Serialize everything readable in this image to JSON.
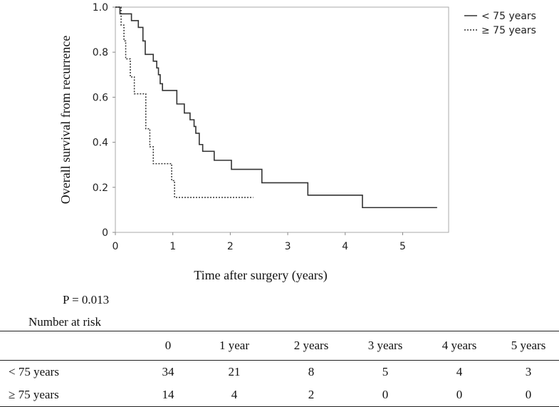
{
  "chart_data": {
    "type": "line",
    "subtype": "kaplan-meier-step",
    "xlabel": "Time after surgery (years)",
    "ylabel": "Overall survival from recurrence",
    "xlim": [
      0,
      5.8
    ],
    "ylim": [
      0,
      1.0
    ],
    "xticks": [
      0,
      1,
      2,
      3,
      4,
      5
    ],
    "xtick_labels": [
      "0",
      "1",
      "2",
      "3",
      "4",
      "5"
    ],
    "yticks": [
      0,
      0.2,
      0.4,
      0.6,
      0.8,
      1.0
    ],
    "ytick_labels": [
      "0",
      "0.2",
      "0.4",
      "0.6",
      "0.8",
      "1.0"
    ],
    "legend_position": "top-right outside",
    "series": [
      {
        "name": "< 75 years",
        "style": "solid",
        "color": "#333333",
        "points": [
          [
            0,
            1.0
          ],
          [
            0.08,
            0.97
          ],
          [
            0.28,
            0.94
          ],
          [
            0.4,
            0.91
          ],
          [
            0.48,
            0.85
          ],
          [
            0.52,
            0.79
          ],
          [
            0.66,
            0.76
          ],
          [
            0.72,
            0.73
          ],
          [
            0.75,
            0.7
          ],
          [
            0.78,
            0.66
          ],
          [
            0.82,
            0.63
          ],
          [
            1.07,
            0.57
          ],
          [
            1.2,
            0.53
          ],
          [
            1.3,
            0.5
          ],
          [
            1.37,
            0.47
          ],
          [
            1.4,
            0.44
          ],
          [
            1.46,
            0.39
          ],
          [
            1.52,
            0.36
          ],
          [
            1.72,
            0.32
          ],
          [
            2.02,
            0.28
          ],
          [
            2.55,
            0.22
          ],
          [
            3.35,
            0.165
          ],
          [
            4.3,
            0.11
          ],
          [
            5.6,
            0.11
          ]
        ]
      },
      {
        "name": "≥ 75 years",
        "style": "dotted",
        "color": "#333333",
        "points": [
          [
            0,
            1.0
          ],
          [
            0.1,
            0.92
          ],
          [
            0.15,
            0.85
          ],
          [
            0.18,
            0.77
          ],
          [
            0.26,
            0.69
          ],
          [
            0.33,
            0.615
          ],
          [
            0.53,
            0.46
          ],
          [
            0.6,
            0.38
          ],
          [
            0.66,
            0.305
          ],
          [
            0.98,
            0.23
          ],
          [
            1.03,
            0.155
          ],
          [
            2.4,
            0.155
          ]
        ]
      }
    ]
  },
  "stats": {
    "p_value": "P = 0.013"
  },
  "risk_table": {
    "title": "Number at risk",
    "headers": [
      "",
      "0",
      "1 year",
      "2 years",
      "3 years",
      "4 years",
      "5 years"
    ],
    "rows": [
      {
        "label": "< 75 years",
        "values": [
          "34",
          "21",
          "8",
          "5",
          "4",
          "3"
        ]
      },
      {
        "label": "≥ 75 years",
        "values": [
          "14",
          "4",
          "2",
          "0",
          "0",
          "0"
        ]
      }
    ]
  }
}
